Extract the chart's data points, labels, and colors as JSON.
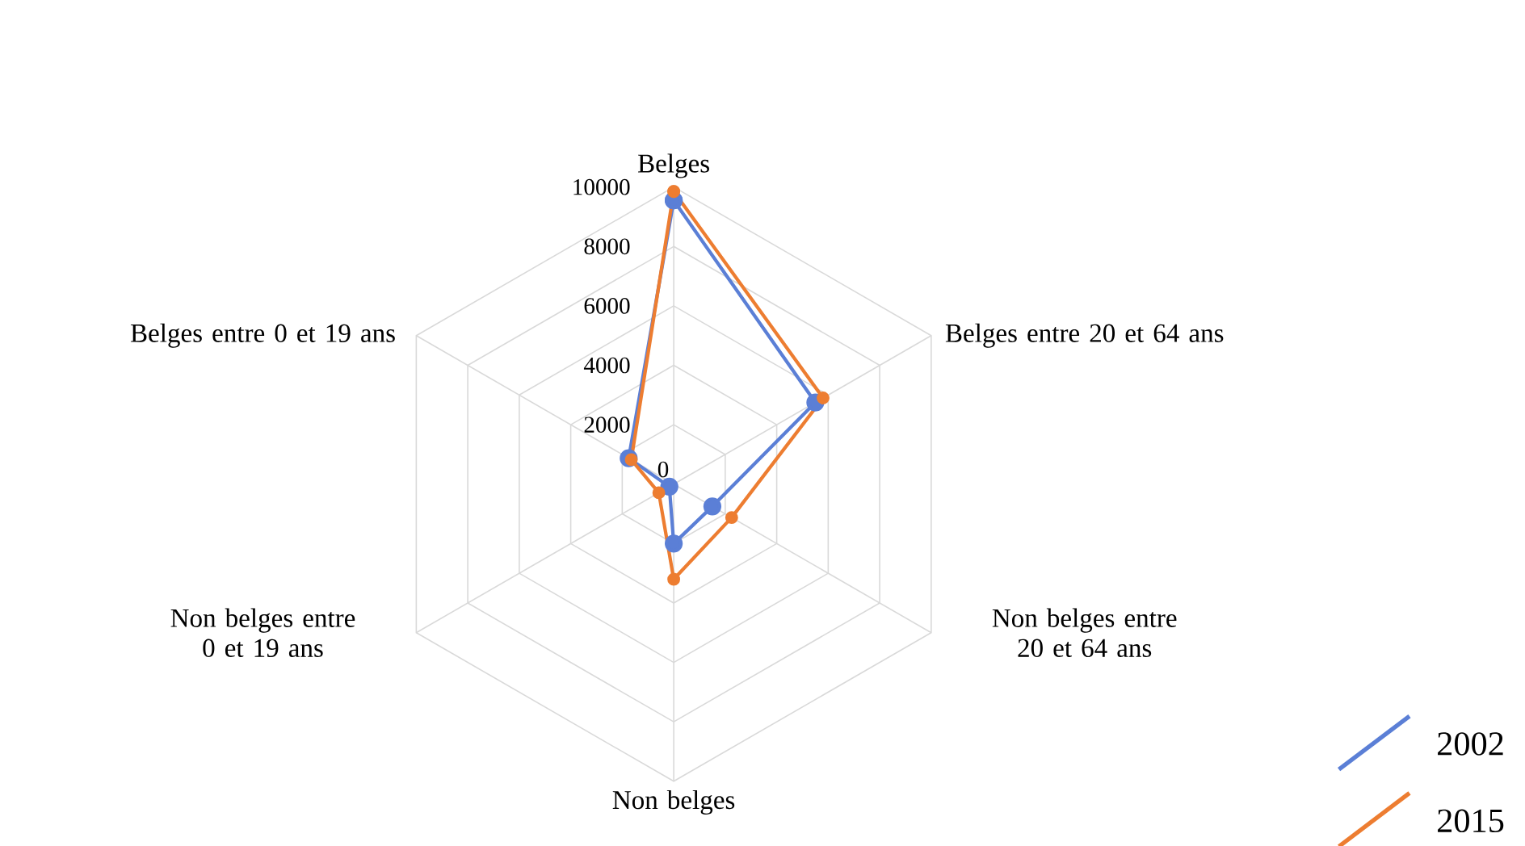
{
  "chart_data": {
    "type": "radar",
    "categories": [
      "Belges",
      "Belges entre 20 et 64 ans",
      "Non belges entre 20 et 64 ans",
      "Non belges",
      "Non belges entre 0 et 19 ans",
      "Belges entre 0 et 19 ans"
    ],
    "series": [
      {
        "name": "2002",
        "color": "#5b7fd6",
        "values": [
          9550,
          5500,
          1500,
          2000,
          170,
          1750
        ]
      },
      {
        "name": "2015",
        "color": "#ed7d31",
        "values": [
          9850,
          5800,
          2250,
          3200,
          580,
          1650
        ]
      }
    ],
    "ylim": [
      0,
      10000
    ],
    "yticks": [
      0,
      2000,
      4000,
      6000,
      8000,
      10000
    ],
    "grid": true,
    "legend": "right",
    "marker": "circle"
  }
}
